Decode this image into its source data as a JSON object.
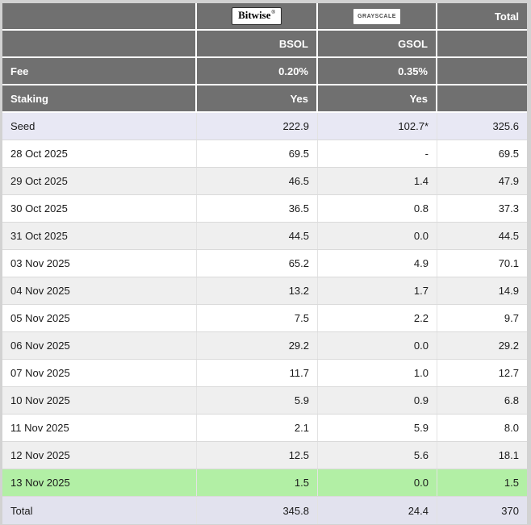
{
  "colors": {
    "header_bg": "#707070",
    "stripe_gray": "#efefef",
    "seed_row_bg": "#e8e8f4",
    "highlight_green": "#b2efa5",
    "total_row_bg": "#e2e2ee",
    "page_bg": "#d2d2d2"
  },
  "chart_data": {
    "type": "table",
    "columns": [
      "",
      "BSOL",
      "GSOL",
      "Total"
    ],
    "header": {
      "bitwise_logo": "Bitwise",
      "bitwise_mark": "®",
      "grayscale_logo": "GRAYSCALE",
      "total_col_label": "Total",
      "bsol_ticker": "BSOL",
      "gsol_ticker": "GSOL",
      "fee_label": "Fee",
      "bsol_fee": "0.20%",
      "gsol_fee": "0.35%",
      "staking_label": "Staking",
      "bsol_staking": "Yes",
      "gsol_staking": "Yes"
    },
    "rows": [
      {
        "label": "Seed",
        "bsol": "222.9",
        "gsol": "102.7*",
        "total": "325.6",
        "variant": "seed"
      },
      {
        "label": "28 Oct 2025",
        "bsol": "69.5",
        "gsol": "-",
        "total": "69.5",
        "variant": ""
      },
      {
        "label": "29 Oct 2025",
        "bsol": "46.5",
        "gsol": "1.4",
        "total": "47.9",
        "variant": ""
      },
      {
        "label": "30 Oct 2025",
        "bsol": "36.5",
        "gsol": "0.8",
        "total": "37.3",
        "variant": ""
      },
      {
        "label": "31 Oct 2025",
        "bsol": "44.5",
        "gsol": "0.0",
        "total": "44.5",
        "variant": ""
      },
      {
        "label": "03 Nov 2025",
        "bsol": "65.2",
        "gsol": "4.9",
        "total": "70.1",
        "variant": ""
      },
      {
        "label": "04 Nov 2025",
        "bsol": "13.2",
        "gsol": "1.7",
        "total": "14.9",
        "variant": ""
      },
      {
        "label": "05 Nov 2025",
        "bsol": "7.5",
        "gsol": "2.2",
        "total": "9.7",
        "variant": ""
      },
      {
        "label": "06 Nov 2025",
        "bsol": "29.2",
        "gsol": "0.0",
        "total": "29.2",
        "variant": ""
      },
      {
        "label": "07 Nov 2025",
        "bsol": "11.7",
        "gsol": "1.0",
        "total": "12.7",
        "variant": ""
      },
      {
        "label": "10 Nov 2025",
        "bsol": "5.9",
        "gsol": "0.9",
        "total": "6.8",
        "variant": ""
      },
      {
        "label": "11 Nov 2025",
        "bsol": "2.1",
        "gsol": "5.9",
        "total": "8.0",
        "variant": ""
      },
      {
        "label": "12 Nov 2025",
        "bsol": "12.5",
        "gsol": "5.6",
        "total": "18.1",
        "variant": ""
      },
      {
        "label": "13 Nov 2025",
        "bsol": "1.5",
        "gsol": "0.0",
        "total": "1.5",
        "variant": "highlight"
      },
      {
        "label": "Total",
        "bsol": "345.8",
        "gsol": "24.4",
        "total": "370",
        "variant": "total"
      }
    ]
  }
}
